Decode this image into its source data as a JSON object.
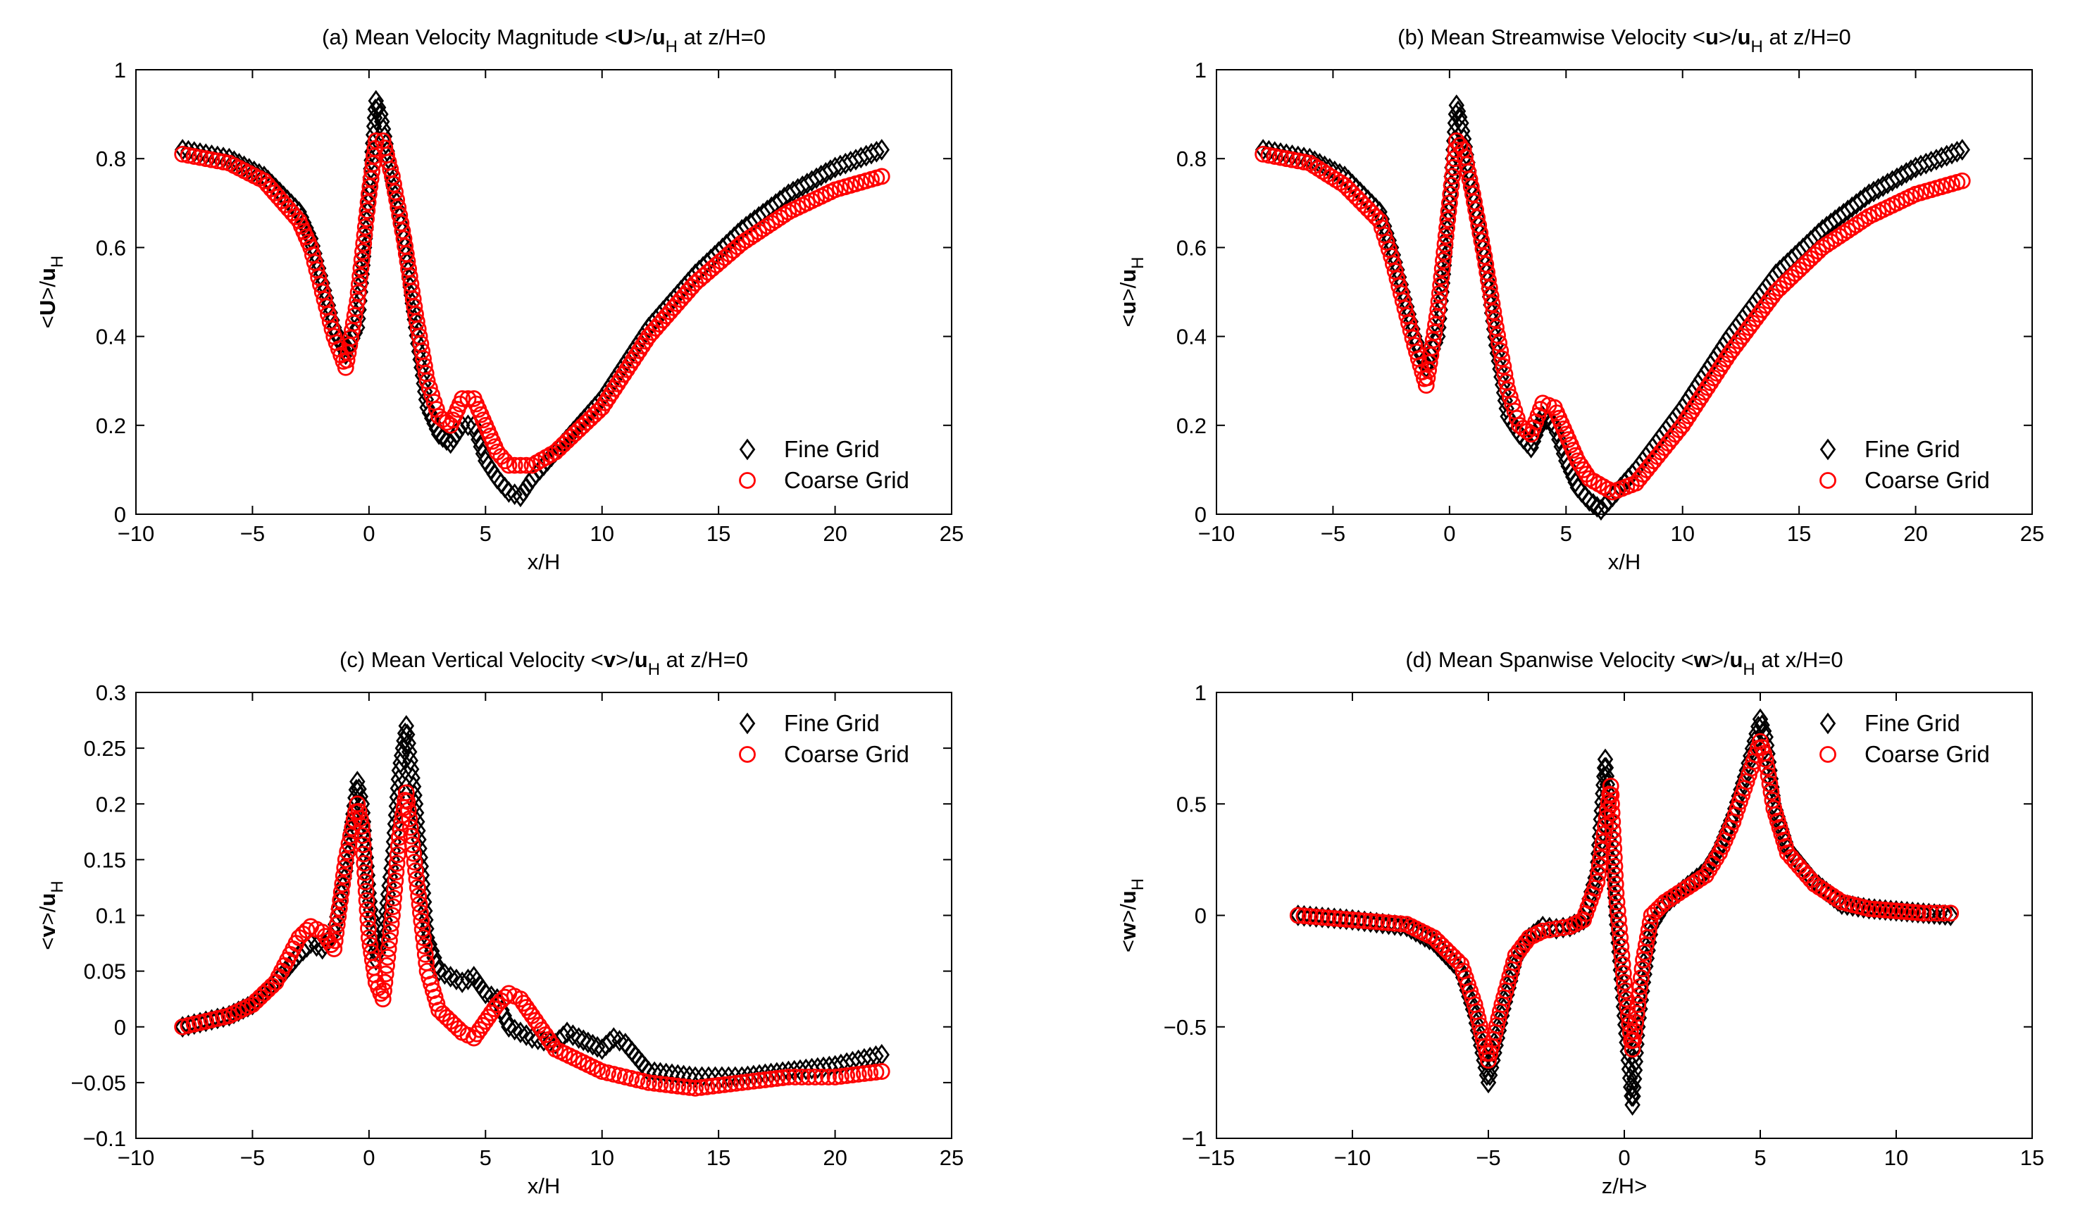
{
  "colors": {
    "fine": "#000000",
    "coarse": "#ff0000",
    "axis": "#000000"
  },
  "legend_labels": {
    "fine": "Fine Grid",
    "coarse": "Coarse Grid"
  },
  "chart_data": [
    {
      "id": "a",
      "type": "scatter",
      "title": "(a) Mean Velocity Magnitude <U>/u_H at z/H=0",
      "title_parts": {
        "pre": "(a) Mean Velocity Magnitude <",
        "bold": "U",
        "mid": ">/",
        "bold2": "u",
        "sub": "H",
        "post": " at z/H=0"
      },
      "xlabel": "x/H",
      "ylabel_parts": {
        "pre": "<",
        "bold": "U",
        "mid": ">/",
        "bold2": "u",
        "sub": "H"
      },
      "xlim": [
        -10,
        25
      ],
      "ylim": [
        0,
        1
      ],
      "xticks": [
        -10,
        -5,
        0,
        5,
        10,
        15,
        20,
        25
      ],
      "xtick_labels": [
        "−10",
        "−5",
        "0",
        "5",
        "10",
        "15",
        "20",
        "25"
      ],
      "yticks": [
        0,
        0.2,
        0.4,
        0.6,
        0.8,
        1
      ],
      "ytick_labels": [
        "0",
        "0.2",
        "0.4",
        "0.6",
        "0.8",
        "1"
      ],
      "legend_position": "bottom-right",
      "series": [
        {
          "name": "Fine Grid",
          "marker": "diamond",
          "x": [
            -8,
            -6,
            -4.5,
            -3,
            -2.5,
            -2,
            -1.5,
            -1,
            -0.5,
            0,
            0.3,
            0.5,
            1,
            1.5,
            2,
            2.5,
            3,
            3.5,
            4,
            4.5,
            5,
            5.5,
            6,
            6.5,
            7,
            8,
            10,
            12,
            14,
            16,
            18,
            20,
            22
          ],
          "y": [
            0.82,
            0.8,
            0.76,
            0.68,
            0.62,
            0.52,
            0.42,
            0.36,
            0.42,
            0.72,
            0.93,
            0.9,
            0.75,
            0.62,
            0.42,
            0.24,
            0.18,
            0.16,
            0.2,
            0.2,
            0.12,
            0.08,
            0.05,
            0.04,
            0.08,
            0.14,
            0.26,
            0.42,
            0.54,
            0.64,
            0.72,
            0.78,
            0.82
          ]
        },
        {
          "name": "Coarse Grid",
          "marker": "circle",
          "x": [
            -8,
            -6,
            -4.5,
            -3,
            -2.5,
            -2,
            -1.5,
            -1,
            -0.5,
            0,
            0.3,
            0.6,
            1,
            1.5,
            2,
            2.5,
            3,
            3.5,
            4,
            4.5,
            5,
            5.5,
            6,
            7,
            8,
            10,
            12,
            14,
            16,
            18,
            20,
            22
          ],
          "y": [
            0.81,
            0.79,
            0.75,
            0.66,
            0.6,
            0.5,
            0.4,
            0.33,
            0.48,
            0.72,
            0.84,
            0.84,
            0.76,
            0.62,
            0.45,
            0.3,
            0.22,
            0.2,
            0.26,
            0.26,
            0.2,
            0.14,
            0.11,
            0.11,
            0.14,
            0.24,
            0.4,
            0.52,
            0.61,
            0.68,
            0.73,
            0.76
          ]
        }
      ]
    },
    {
      "id": "b",
      "type": "scatter",
      "title": "(b) Mean Streamwise Velocity <u>/u_H at z/H=0",
      "title_parts": {
        "pre": "(b) Mean Streamwise Velocity <",
        "bold": "u",
        "mid": ">/",
        "bold2": "u",
        "sub": "H",
        "post": " at z/H=0"
      },
      "xlabel": "x/H",
      "ylabel_parts": {
        "pre": "<",
        "bold": "u",
        "mid": ">/",
        "bold2": "u",
        "sub": "H"
      },
      "xlim": [
        -10,
        25
      ],
      "ylim": [
        0,
        1
      ],
      "xticks": [
        -10,
        -5,
        0,
        5,
        10,
        15,
        20,
        25
      ],
      "xtick_labels": [
        "−10",
        "−5",
        "0",
        "5",
        "10",
        "15",
        "20",
        "25"
      ],
      "yticks": [
        0,
        0.2,
        0.4,
        0.6,
        0.8,
        1
      ],
      "ytick_labels": [
        "0",
        "0.2",
        "0.4",
        "0.6",
        "0.8",
        "1"
      ],
      "legend_position": "bottom-right",
      "series": [
        {
          "name": "Fine Grid",
          "marker": "diamond",
          "x": [
            -8,
            -6,
            -4.5,
            -3,
            -2.5,
            -2,
            -1.5,
            -1,
            -0.5,
            0,
            0.3,
            0.5,
            1,
            1.5,
            2,
            2.5,
            3,
            3.5,
            4,
            4.5,
            5,
            5.5,
            6,
            6.5,
            7,
            8,
            10,
            12,
            14,
            16,
            18,
            20,
            22
          ],
          "y": [
            0.82,
            0.8,
            0.76,
            0.68,
            0.6,
            0.5,
            0.4,
            0.33,
            0.4,
            0.7,
            0.92,
            0.88,
            0.72,
            0.58,
            0.38,
            0.22,
            0.18,
            0.15,
            0.22,
            0.2,
            0.12,
            0.06,
            0.03,
            0.01,
            0.04,
            0.1,
            0.24,
            0.4,
            0.54,
            0.64,
            0.72,
            0.78,
            0.82
          ]
        },
        {
          "name": "Coarse Grid",
          "marker": "circle",
          "x": [
            -8,
            -6,
            -4.5,
            -3,
            -2.5,
            -2,
            -1.5,
            -1,
            -0.5,
            0,
            0.3,
            0.6,
            1,
            1.5,
            2,
            2.5,
            3,
            3.5,
            4,
            4.5,
            5,
            5.5,
            6,
            7,
            8,
            10,
            12,
            14,
            16,
            18,
            20,
            22
          ],
          "y": [
            0.81,
            0.79,
            0.74,
            0.66,
            0.58,
            0.48,
            0.38,
            0.29,
            0.46,
            0.7,
            0.84,
            0.82,
            0.72,
            0.58,
            0.42,
            0.28,
            0.2,
            0.18,
            0.25,
            0.24,
            0.18,
            0.12,
            0.08,
            0.05,
            0.07,
            0.2,
            0.36,
            0.5,
            0.6,
            0.67,
            0.72,
            0.75
          ]
        }
      ]
    },
    {
      "id": "c",
      "type": "scatter",
      "title": "(c) Mean Vertical Velocity <v>/u_H at z/H=0",
      "title_parts": {
        "pre": "(c) Mean Vertical Velocity <",
        "bold": "v",
        "mid": ">/",
        "bold2": "u",
        "sub": "H",
        "post": " at z/H=0"
      },
      "xlabel": "x/H",
      "ylabel_parts": {
        "pre": "<",
        "bold": "v",
        "mid": ">/",
        "bold2": "u",
        "sub": "H"
      },
      "xlim": [
        -10,
        25
      ],
      "ylim": [
        -0.1,
        0.3
      ],
      "xticks": [
        -10,
        -5,
        0,
        5,
        10,
        15,
        20,
        25
      ],
      "xtick_labels": [
        "−10",
        "−5",
        "0",
        "5",
        "10",
        "15",
        "20",
        "25"
      ],
      "yticks": [
        -0.1,
        -0.05,
        0,
        0.05,
        0.1,
        0.15,
        0.2,
        0.25,
        0.3
      ],
      "ytick_labels": [
        "−0.1",
        "−0.05",
        "0",
        "0.05",
        "0.1",
        "0.15",
        "0.2",
        "0.25",
        "0.3"
      ],
      "legend_position": "top-right",
      "series": [
        {
          "name": "Fine Grid",
          "marker": "diamond",
          "x": [
            -8,
            -6,
            -5,
            -4,
            -3,
            -2.5,
            -2,
            -1.5,
            -1,
            -0.5,
            -0.3,
            0,
            0.3,
            0.6,
            1,
            1.3,
            1.6,
            2,
            2.5,
            3,
            3.5,
            4,
            4.5,
            5,
            5.5,
            6,
            6.5,
            7,
            8,
            8.5,
            9,
            10,
            10.5,
            11,
            12,
            14,
            16,
            18,
            20,
            21,
            22
          ],
          "y": [
            0,
            0.01,
            0.02,
            0.04,
            0.065,
            0.075,
            0.07,
            0.085,
            0.14,
            0.22,
            0.2,
            0.12,
            0.06,
            0.08,
            0.15,
            0.23,
            0.27,
            0.2,
            0.08,
            0.05,
            0.045,
            0.04,
            0.045,
            0.03,
            0.025,
            0.0,
            -0.005,
            -0.01,
            -0.015,
            -0.005,
            -0.01,
            -0.02,
            -0.01,
            -0.015,
            -0.04,
            -0.045,
            -0.045,
            -0.04,
            -0.035,
            -0.03,
            -0.025
          ]
        },
        {
          "name": "Coarse Grid",
          "marker": "circle",
          "x": [
            -8,
            -6,
            -5,
            -4,
            -3,
            -2.5,
            -2,
            -1.5,
            -1,
            -0.5,
            -0.3,
            0,
            0.3,
            0.6,
            1,
            1.3,
            1.6,
            2,
            2.5,
            3,
            3.5,
            4,
            4.5,
            5,
            5.5,
            6,
            6.5,
            7,
            8,
            10,
            12,
            14,
            16,
            18,
            20,
            22
          ],
          "y": [
            0,
            0.01,
            0.02,
            0.04,
            0.08,
            0.09,
            0.085,
            0.07,
            0.15,
            0.2,
            0.18,
            0.08,
            0.04,
            0.025,
            0.1,
            0.17,
            0.21,
            0.14,
            0.05,
            0.015,
            0.005,
            -0.005,
            -0.01,
            0.005,
            0.02,
            0.03,
            0.025,
            0.01,
            -0.02,
            -0.04,
            -0.05,
            -0.055,
            -0.05,
            -0.045,
            -0.045,
            -0.04
          ]
        }
      ]
    },
    {
      "id": "d",
      "type": "scatter",
      "title": "(d) Mean Spanwise Velocity <w>/u_H at x/H=0",
      "title_parts": {
        "pre": "(d) Mean Spanwise Velocity <",
        "bold": "w",
        "mid": ">/",
        "bold2": "u",
        "sub": "H",
        "post": " at x/H=0"
      },
      "xlabel": "z/H>",
      "ylabel_parts": {
        "pre": "<",
        "bold": "w",
        "mid": ">/",
        "bold2": "u",
        "sub": "H"
      },
      "xlim": [
        -15,
        15
      ],
      "ylim": [
        -1,
        1
      ],
      "xticks": [
        -15,
        -10,
        -5,
        0,
        5,
        10,
        15
      ],
      "xtick_labels": [
        "−15",
        "−10",
        "−5",
        "0",
        "5",
        "10",
        "15"
      ],
      "yticks": [
        -1,
        -0.5,
        0,
        0.5,
        1
      ],
      "ytick_labels": [
        "−1",
        "−0.5",
        "0",
        "0.5",
        "1"
      ],
      "legend_position": "top-right",
      "series": [
        {
          "name": "Fine Grid",
          "marker": "diamond",
          "x": [
            -12,
            -10,
            -8,
            -7,
            -6,
            -5.5,
            -5,
            -4.5,
            -4,
            -3.5,
            -3,
            -2.5,
            -2,
            -1.5,
            -1,
            -0.7,
            -0.5,
            -0.3,
            0,
            0.3,
            0.5,
            0.7,
            1,
            1.5,
            2,
            2.5,
            3,
            3.5,
            4,
            4.5,
            5,
            5.2,
            5.5,
            6,
            7,
            8,
            9,
            10,
            11,
            12
          ],
          "y": [
            0,
            -0.02,
            -0.05,
            -0.12,
            -0.25,
            -0.45,
            -0.75,
            -0.45,
            -0.2,
            -0.1,
            -0.05,
            -0.06,
            -0.05,
            -0.02,
            0.2,
            0.7,
            0.4,
            0.0,
            -0.45,
            -0.85,
            -0.5,
            -0.3,
            -0.05,
            0.05,
            0.1,
            0.15,
            0.2,
            0.3,
            0.45,
            0.65,
            0.88,
            0.8,
            0.5,
            0.3,
            0.15,
            0.05,
            0.03,
            0.02,
            0.01,
            0.0
          ]
        },
        {
          "name": "Coarse Grid",
          "marker": "circle",
          "x": [
            -12,
            -10,
            -8,
            -7,
            -6,
            -5.5,
            -5,
            -4.5,
            -4,
            -3.5,
            -3,
            -2.5,
            -2,
            -1.5,
            -1,
            -0.7,
            -0.5,
            -0.3,
            0,
            0.3,
            0.5,
            0.7,
            1,
            1.5,
            2,
            2.5,
            3,
            3.5,
            4,
            4.5,
            5,
            5.2,
            5.5,
            6,
            7,
            8,
            9,
            10,
            11,
            12
          ],
          "y": [
            0,
            -0.02,
            -0.04,
            -0.1,
            -0.22,
            -0.4,
            -0.65,
            -0.4,
            -0.18,
            -0.1,
            -0.07,
            -0.06,
            -0.05,
            -0.02,
            0.15,
            0.4,
            0.58,
            0.1,
            -0.3,
            -0.6,
            -0.4,
            -0.2,
            0.0,
            0.06,
            0.1,
            0.14,
            0.18,
            0.28,
            0.42,
            0.6,
            0.78,
            0.7,
            0.48,
            0.28,
            0.14,
            0.06,
            0.03,
            0.02,
            0.01,
            0.01
          ]
        }
      ]
    }
  ]
}
